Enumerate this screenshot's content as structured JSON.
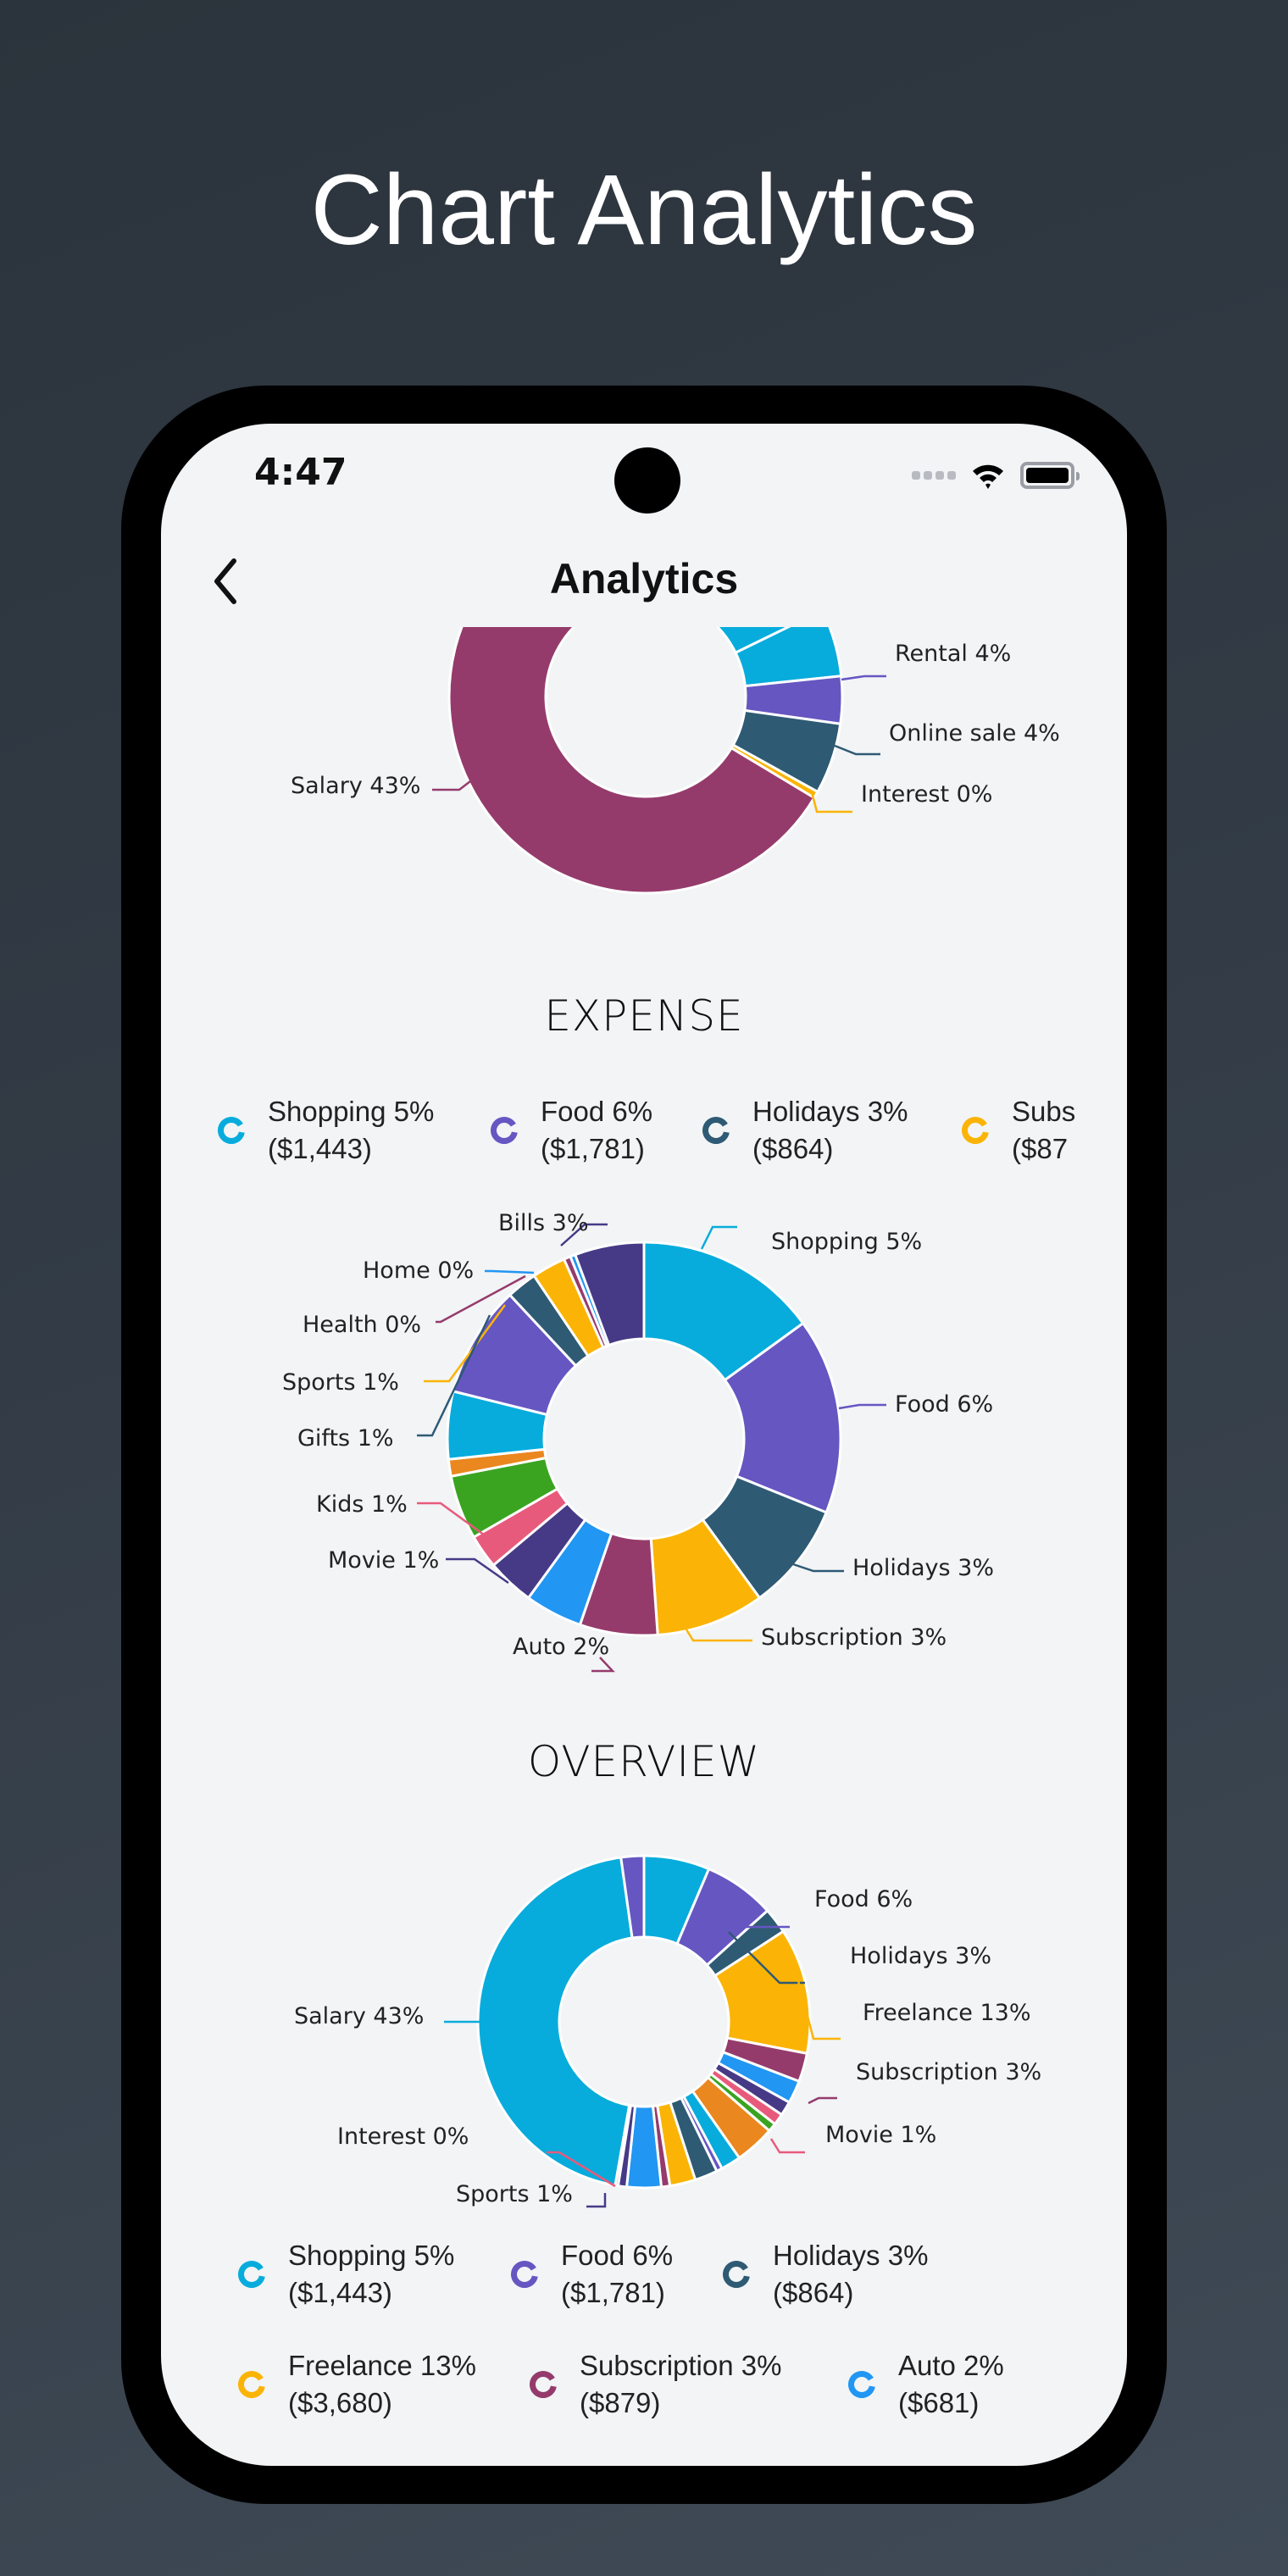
{
  "promo": {
    "title": "Chart Analytics"
  },
  "status_bar": {
    "time": "4:47",
    "icons": [
      "signal-icon",
      "wifi-icon",
      "battery-icon"
    ]
  },
  "nav": {
    "title": "Analytics",
    "back_icon": "chevron-left-icon"
  },
  "colors": {
    "cyan": "#07acdc",
    "purple": "#6656c2",
    "teal": "#2e5a74",
    "yellow": "#fbb405",
    "maroon": "#953b6c",
    "blue": "#2196f3",
    "indigo": "#463a87",
    "pink": "#e85a7c",
    "green": "#3aa421",
    "orange": "#ea871e"
  },
  "income_section": {
    "labels": [
      {
        "text": "Rental 4%",
        "color": "#6656c2"
      },
      {
        "text": "Online sale 4%",
        "color": "#2e5a74"
      },
      {
        "text": "Interest 0%",
        "color": "#fbb405"
      },
      {
        "text": "Salary 43%",
        "color": "#953b6c"
      }
    ]
  },
  "expense_section": {
    "title": "EXPENSE",
    "legend": [
      {
        "name": "Shopping 5%",
        "amount": "($1,443)",
        "color": "#07acdc"
      },
      {
        "name": "Food 6%",
        "amount": "($1,781)",
        "color": "#6656c2"
      },
      {
        "name": "Holidays 3%",
        "amount": "($864)",
        "color": "#2e5a74"
      },
      {
        "name": "Subs",
        "amount": "($87",
        "color": "#fbb405"
      }
    ],
    "labels": [
      {
        "text": "Bills 3%"
      },
      {
        "text": "Home 0%"
      },
      {
        "text": "Health 0%"
      },
      {
        "text": "Sports 1%"
      },
      {
        "text": "Gifts 1%"
      },
      {
        "text": "Kids 1%"
      },
      {
        "text": "Movie 1%"
      },
      {
        "text": "Auto 2%"
      },
      {
        "text": "Shopping 5%"
      },
      {
        "text": "Food 6%"
      },
      {
        "text": "Holidays 3%"
      },
      {
        "text": "Subscription 3%"
      }
    ]
  },
  "overview_section": {
    "title": "OVERVIEW",
    "labels": [
      {
        "text": "Food 6%"
      },
      {
        "text": "Holidays 3%"
      },
      {
        "text": "Freelance 13%"
      },
      {
        "text": "Subscription 3%"
      },
      {
        "text": "Movie 1%"
      },
      {
        "text": "Salary 43%"
      },
      {
        "text": "Interest 0%"
      },
      {
        "text": "Sports 1%"
      }
    ],
    "legend": [
      {
        "name": "Shopping 5%",
        "amount": "($1,443)",
        "color": "#07acdc"
      },
      {
        "name": "Food 6%",
        "amount": "($1,781)",
        "color": "#6656c2"
      },
      {
        "name": "Holidays 3%",
        "amount": "($864)",
        "color": "#2e5a74"
      },
      {
        "name": "Freelance 13%",
        "amount": "($3,680)",
        "color": "#fbb405"
      },
      {
        "name": "Subscription 3%",
        "amount": "($879)",
        "color": "#953b6c"
      },
      {
        "name": "Auto 2%",
        "amount": "($681)",
        "color": "#2196f3"
      }
    ]
  },
  "chart_data": [
    {
      "type": "pie",
      "title": "Income (partially visible, scrolled)",
      "donut": true,
      "categories": [
        "Salary",
        "Interest",
        "Online sale",
        "Rental",
        "(cut off)"
      ],
      "values": [
        43,
        0,
        4,
        4,
        null
      ],
      "value_unit": "%"
    },
    {
      "type": "pie",
      "title": "EXPENSE",
      "donut": true,
      "categories": [
        "Shopping",
        "Food",
        "Holidays",
        "Subscription",
        "Auto",
        "Movie",
        "Kids",
        "Gifts",
        "Sports",
        "Health",
        "Home",
        "Bills"
      ],
      "values": [
        5,
        6,
        3,
        3,
        2,
        1,
        1,
        1,
        1,
        0,
        0,
        3
      ],
      "amounts": {
        "Shopping": 1443,
        "Food": 1781,
        "Holidays": 864,
        "Subscription": 879
      },
      "value_unit": "%",
      "legend_position": "top"
    },
    {
      "type": "pie",
      "title": "OVERVIEW",
      "donut": true,
      "categories": [
        "Food",
        "Holidays",
        "Freelance",
        "Subscription",
        "Movie",
        "Sports",
        "Interest",
        "Salary"
      ],
      "values": [
        6,
        3,
        13,
        3,
        1,
        1,
        0,
        43
      ],
      "legend": [
        {
          "name": "Shopping",
          "percent": 5,
          "amount": 1443
        },
        {
          "name": "Food",
          "percent": 6,
          "amount": 1781
        },
        {
          "name": "Holidays",
          "percent": 3,
          "amount": 864
        },
        {
          "name": "Freelance",
          "percent": 13,
          "amount": 3680
        },
        {
          "name": "Subscription",
          "percent": 3,
          "amount": 879
        },
        {
          "name": "Auto",
          "percent": 2,
          "amount": 681
        }
      ],
      "value_unit": "%",
      "legend_position": "bottom"
    }
  ]
}
